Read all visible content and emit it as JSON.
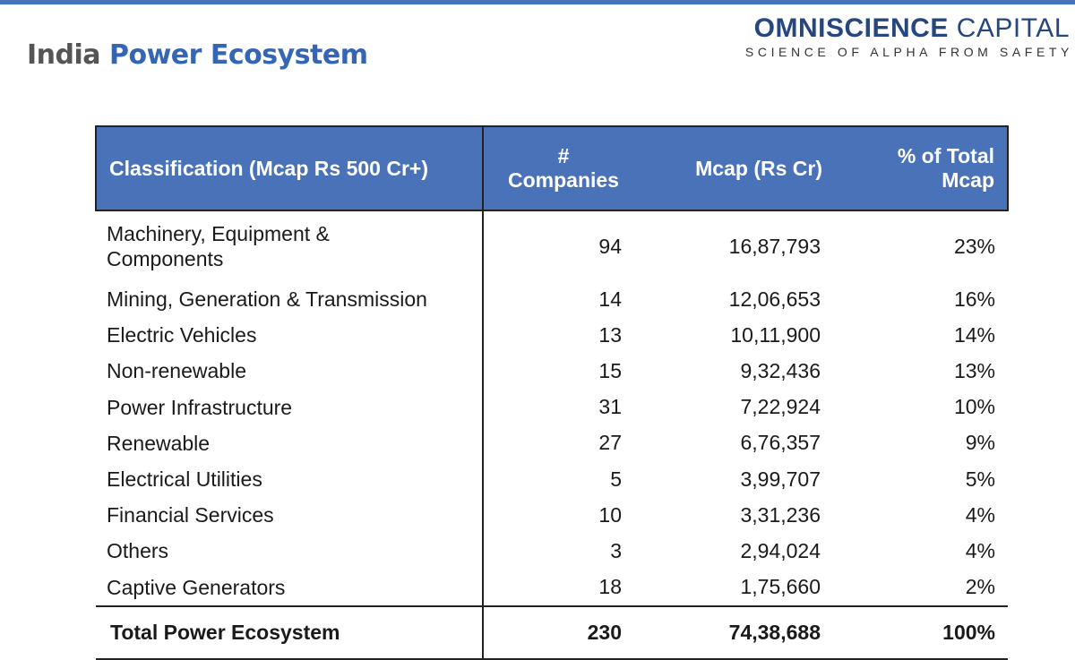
{
  "header": {
    "title_part1": "India",
    "title_part2": "Power Ecosystem",
    "brand_bold": "OMNISCIENCE",
    "brand_light": "CAPITAL",
    "brand_tagline": "SCIENCE OF ALPHA FROM SAFETY"
  },
  "colors": {
    "accent": "#4a72b8",
    "title_blue": "#3565b5",
    "brand": "#25467f"
  },
  "table": {
    "headers": {
      "classification": "Classification (Mcap Rs 500 Cr+)",
      "companies_line1": "#",
      "companies_line2": "Companies",
      "mcap": "Mcap (Rs Cr)",
      "pct_line1": "% of Total",
      "pct_line2": "Mcap"
    },
    "rows": [
      {
        "classification_line1": "Machinery, Equipment &",
        "classification_line2": "Components",
        "companies": "94",
        "mcap": "16,87,793",
        "pct": "23%"
      },
      {
        "classification": "Mining, Generation & Transmission",
        "companies": "14",
        "mcap": "12,06,653",
        "pct": "16%"
      },
      {
        "classification": "Electric Vehicles",
        "companies": "13",
        "mcap": "10,11,900",
        "pct": "14%"
      },
      {
        "classification": "Non-renewable",
        "companies": "15",
        "mcap": "9,32,436",
        "pct": "13%"
      },
      {
        "classification": "Power Infrastructure",
        "companies": "31",
        "mcap": "7,22,924",
        "pct": "10%"
      },
      {
        "classification": "Renewable",
        "companies": "27",
        "mcap": "6,76,357",
        "pct": "9%"
      },
      {
        "classification": "Electrical Utilities",
        "companies": "5",
        "mcap": "3,99,707",
        "pct": "5%"
      },
      {
        "classification": "Financial Services",
        "companies": "10",
        "mcap": "3,31,236",
        "pct": "4%"
      },
      {
        "classification": "Others",
        "companies": "3",
        "mcap": "2,94,024",
        "pct": "4%"
      },
      {
        "classification": "Captive Generators",
        "companies": "18",
        "mcap": "1,75,660",
        "pct": "2%"
      }
    ],
    "total": {
      "classification": "Total Power Ecosystem",
      "companies": "230",
      "mcap": "74,38,688",
      "pct": "100%"
    }
  }
}
